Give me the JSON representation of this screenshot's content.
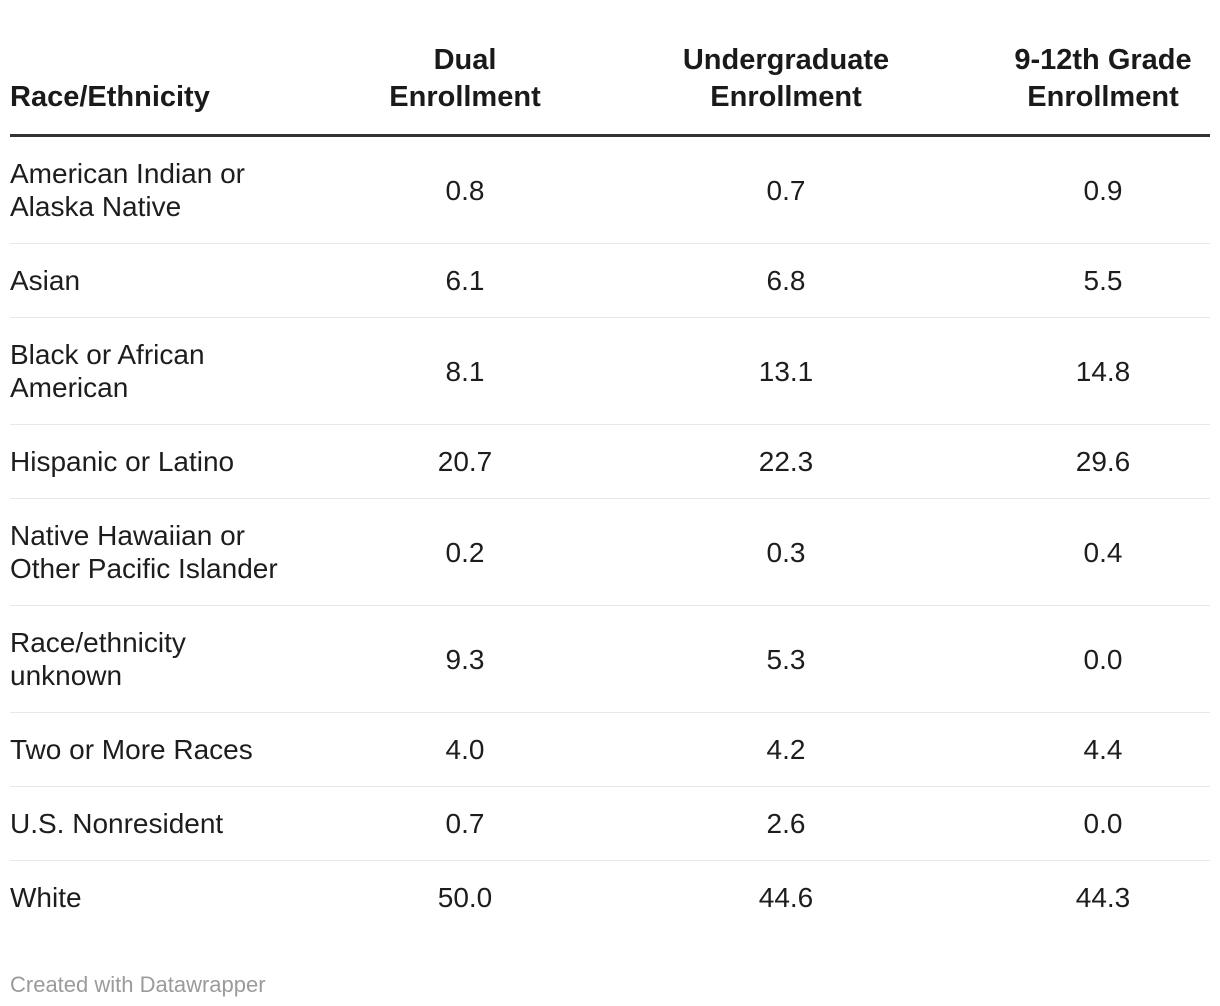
{
  "table": {
    "columns": [
      {
        "label": "Race/Ethnicity",
        "align": "left"
      },
      {
        "label": "Dual Enrollment",
        "align": "center"
      },
      {
        "label": "Undergraduate\nEnrollment",
        "align": "center"
      },
      {
        "label": "9-12th Grade\nEnrollment",
        "align": "center"
      }
    ],
    "rows": [
      {
        "label": "American Indian or\nAlaska Native",
        "values": [
          "0.8",
          "0.7",
          "0.9"
        ]
      },
      {
        "label": "Asian",
        "values": [
          "6.1",
          "6.8",
          "5.5"
        ]
      },
      {
        "label": "Black or African\nAmerican",
        "values": [
          "8.1",
          "13.1",
          "14.8"
        ]
      },
      {
        "label": "Hispanic or Latino",
        "values": [
          "20.7",
          "22.3",
          "29.6"
        ]
      },
      {
        "label": "Native Hawaiian or\nOther Pacific Islander",
        "values": [
          "0.2",
          "0.3",
          "0.4"
        ]
      },
      {
        "label": "Race/ethnicity\nunknown",
        "values": [
          "9.3",
          "5.3",
          "0.0"
        ]
      },
      {
        "label": "Two or More Races",
        "values": [
          "4.0",
          "4.2",
          "4.4"
        ]
      },
      {
        "label": "U.S. Nonresident",
        "values": [
          "0.7",
          "2.6",
          "0.0"
        ]
      },
      {
        "label": "White",
        "values": [
          "50.0",
          "44.6",
          "44.3"
        ]
      }
    ]
  },
  "footer": {
    "credit": "Created with Datawrapper"
  },
  "colors": {
    "background": "#ffffff",
    "body_text": "#1d1d1d",
    "header_text": "#1a1a1a",
    "header_rule": "#333333",
    "row_divider": "#e8e8e8",
    "credit_text": "#9b9b9b"
  },
  "chart_data": {
    "type": "table",
    "title": "",
    "columns": [
      "Race/Ethnicity",
      "Dual Enrollment",
      "Undergraduate Enrollment",
      "9-12th Grade Enrollment"
    ],
    "categories": [
      "American Indian or Alaska Native",
      "Asian",
      "Black or African American",
      "Hispanic or Latino",
      "Native Hawaiian or Other Pacific Islander",
      "Race/ethnicity unknown",
      "Two or More Races",
      "U.S. Nonresident",
      "White"
    ],
    "series": [
      {
        "name": "Dual Enrollment",
        "values": [
          0.8,
          6.1,
          8.1,
          20.7,
          0.2,
          9.3,
          4.0,
          0.7,
          50.0
        ]
      },
      {
        "name": "Undergraduate Enrollment",
        "values": [
          0.7,
          6.8,
          13.1,
          22.3,
          0.3,
          5.3,
          4.2,
          2.6,
          44.6
        ]
      },
      {
        "name": "9-12th Grade Enrollment",
        "values": [
          0.9,
          5.5,
          14.8,
          29.6,
          0.4,
          0.0,
          4.4,
          0.0,
          44.3
        ]
      }
    ],
    "legend_position": "none",
    "grid": "horizontal-row-dividers",
    "credit": "Created with Datawrapper"
  }
}
